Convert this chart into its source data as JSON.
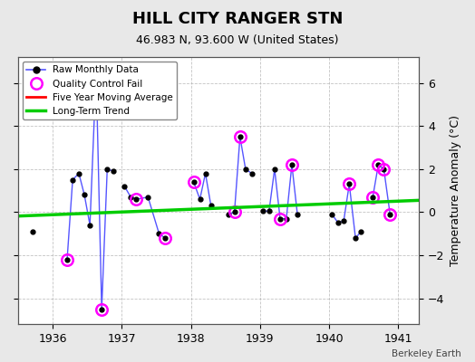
{
  "title": "HILL CITY RANGER STN",
  "subtitle": "46.983 N, 93.600 W (United States)",
  "ylabel": "Temperature Anomaly (°C)",
  "credit": "Berkeley Earth",
  "xlim": [
    1935.5,
    1941.3
  ],
  "ylim": [
    -5.2,
    7.2
  ],
  "yticks": [
    -4,
    -2,
    0,
    2,
    4,
    6
  ],
  "xticks": [
    1936,
    1937,
    1938,
    1939,
    1940,
    1941
  ],
  "background_color": "#e8e8e8",
  "plot_bg_color": "#ffffff",
  "raw_x": [
    1935.71,
    1936.21,
    1936.29,
    1936.38,
    1936.46,
    1936.54,
    1936.63,
    1936.71,
    1936.79,
    1936.88,
    1937.04,
    1937.13,
    1937.21,
    1937.38,
    1937.54,
    1937.63,
    1938.04,
    1938.13,
    1938.21,
    1938.29,
    1938.54,
    1938.63,
    1938.71,
    1938.79,
    1938.88,
    1939.04,
    1939.13,
    1939.21,
    1939.29,
    1939.38,
    1939.46,
    1939.54,
    1940.04,
    1940.13,
    1940.21,
    1940.29,
    1940.38,
    1940.46,
    1940.63,
    1940.71,
    1940.79,
    1940.88
  ],
  "raw_y": [
    -0.9,
    -2.2,
    1.5,
    1.8,
    0.8,
    -0.6,
    6.5,
    -4.5,
    2.0,
    1.9,
    1.2,
    0.7,
    0.6,
    0.7,
    -1.0,
    -1.2,
    1.4,
    0.6,
    1.8,
    0.3,
    -0.1,
    0.0,
    3.5,
    2.0,
    1.8,
    0.05,
    0.05,
    2.0,
    -0.3,
    -0.3,
    2.2,
    -0.1,
    -0.1,
    -0.5,
    -0.4,
    1.3,
    -1.2,
    -0.9,
    0.7,
    2.2,
    2.0,
    -0.1
  ],
  "qc_fail_x": [
    1936.21,
    1936.71,
    1937.21,
    1937.63,
    1938.04,
    1938.63,
    1938.71,
    1939.29,
    1939.46,
    1940.29,
    1940.63,
    1940.71,
    1940.79,
    1940.88
  ],
  "qc_fail_y": [
    -2.2,
    -4.5,
    0.6,
    -1.2,
    1.4,
    0.0,
    3.5,
    -0.3,
    2.2,
    1.3,
    0.7,
    2.2,
    2.0,
    -0.1
  ],
  "trend_x": [
    1935.5,
    1941.3
  ],
  "trend_y": [
    -0.18,
    0.55
  ],
  "segments": [
    {
      "x": [
        1936.21,
        1936.29,
        1936.38,
        1936.46,
        1936.54,
        1936.63,
        1936.71,
        1936.79,
        1936.88
      ],
      "y": [
        -2.2,
        1.5,
        1.8,
        0.8,
        -0.6,
        6.5,
        -4.5,
        2.0,
        1.9
      ]
    },
    {
      "x": [
        1937.04,
        1937.13,
        1937.21,
        1937.38,
        1937.54,
        1937.63
      ],
      "y": [
        1.2,
        0.7,
        0.6,
        0.7,
        -1.0,
        -1.2
      ]
    },
    {
      "x": [
        1938.04,
        1938.13,
        1938.21,
        1938.29
      ],
      "y": [
        1.4,
        0.6,
        1.8,
        0.3
      ]
    },
    {
      "x": [
        1938.54,
        1938.63,
        1938.71,
        1938.79,
        1938.88
      ],
      "y": [
        -0.1,
        0.0,
        3.5,
        2.0,
        1.8
      ]
    },
    {
      "x": [
        1939.04,
        1939.13,
        1939.21,
        1939.29,
        1939.38,
        1939.46,
        1939.54
      ],
      "y": [
        0.05,
        0.05,
        2.0,
        -0.3,
        -0.3,
        2.2,
        -0.1
      ]
    },
    {
      "x": [
        1940.04,
        1940.13,
        1940.21,
        1940.29,
        1940.38,
        1940.46
      ],
      "y": [
        -0.1,
        -0.5,
        -0.4,
        1.3,
        -1.2,
        -0.9
      ]
    },
    {
      "x": [
        1940.63,
        1940.71,
        1940.79,
        1940.88
      ],
      "y": [
        0.7,
        2.2,
        2.0,
        -0.1
      ]
    }
  ],
  "line_color": "#5555ff",
  "dot_color": "#000000",
  "qc_color": "#ff00ff",
  "trend_color": "#00cc00",
  "ma_color": "#ff0000"
}
